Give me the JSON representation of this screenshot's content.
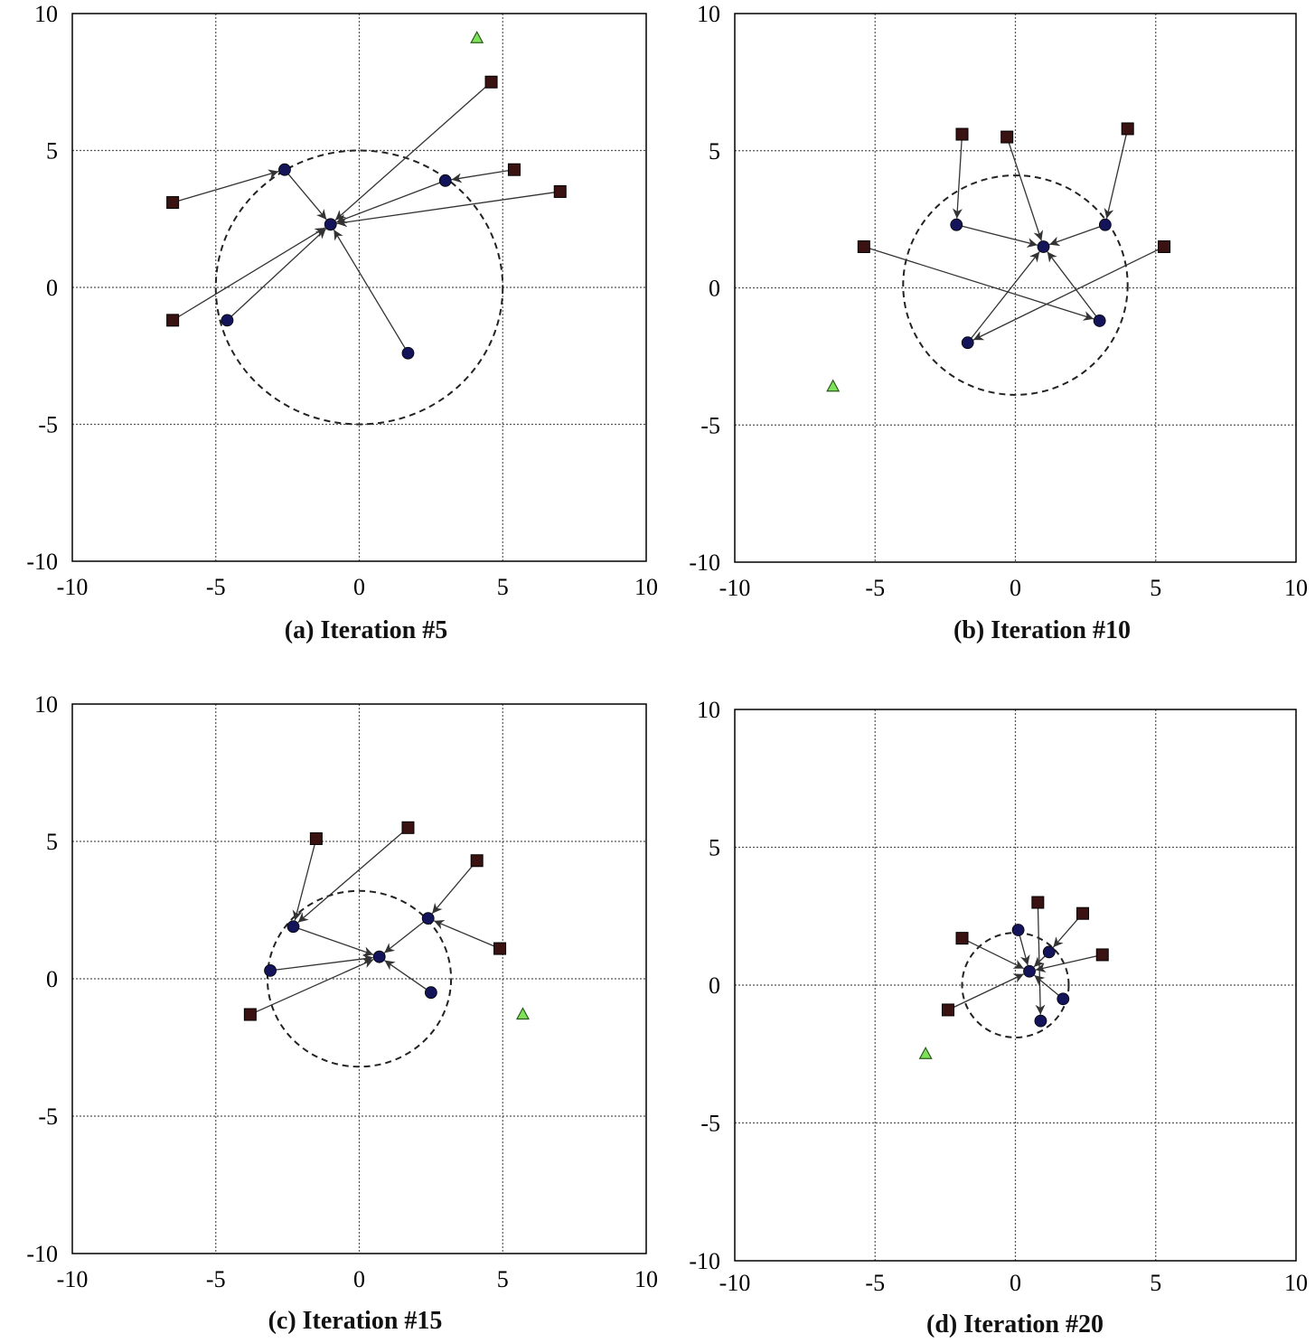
{
  "chart_data": [
    {
      "type": "scatter",
      "caption": "(a) Iteration #5",
      "xlim": [
        -10,
        10
      ],
      "ylim": [
        -10,
        10
      ],
      "xticks": [
        "-10",
        "-5",
        "0",
        "5",
        "10"
      ],
      "yticks": [
        "10",
        "5",
        "0",
        "-5",
        "-10"
      ],
      "grid": true,
      "circle": {
        "cx": 0,
        "cy": 0,
        "r": 5
      },
      "squares": [
        [
          -6.5,
          3.1
        ],
        [
          -6.5,
          -1.2
        ],
        [
          4.6,
          7.5
        ],
        [
          5.4,
          4.3
        ],
        [
          7.0,
          3.5
        ]
      ],
      "dots": [
        [
          -2.6,
          4.3
        ],
        [
          -1.0,
          2.3
        ],
        [
          3.0,
          3.9
        ],
        [
          -4.6,
          -1.2
        ],
        [
          1.7,
          -2.4
        ]
      ],
      "triangles": [
        [
          4.1,
          9.1
        ]
      ],
      "arrows": [
        [
          [
            -6.5,
            3.1
          ],
          [
            -2.6,
            4.3
          ]
        ],
        [
          [
            -2.6,
            4.3
          ],
          [
            -1.0,
            2.3
          ]
        ],
        [
          [
            4.6,
            7.5
          ],
          [
            -1.0,
            2.3
          ]
        ],
        [
          [
            5.4,
            4.3
          ],
          [
            3.0,
            3.9
          ]
        ],
        [
          [
            3.0,
            3.9
          ],
          [
            -1.0,
            2.3
          ]
        ],
        [
          [
            7.0,
            3.5
          ],
          [
            -1.0,
            2.3
          ]
        ],
        [
          [
            -6.5,
            -1.2
          ],
          [
            -1.0,
            2.3
          ]
        ],
        [
          [
            -4.6,
            -1.2
          ],
          [
            -1.0,
            2.3
          ]
        ],
        [
          [
            1.7,
            -2.4
          ],
          [
            -1.0,
            2.3
          ]
        ]
      ]
    },
    {
      "type": "scatter",
      "caption": "(b) Iteration #10",
      "xlim": [
        -10,
        10
      ],
      "ylim": [
        -10,
        10
      ],
      "xticks": [
        "-10",
        "-5",
        "0",
        "5",
        "10"
      ],
      "yticks": [
        "10",
        "5",
        "0",
        "-5",
        "-10"
      ],
      "grid": true,
      "circle": {
        "cx": 0,
        "cy": 0.1,
        "r": 4
      },
      "squares": [
        [
          -1.9,
          5.6
        ],
        [
          -0.3,
          5.5
        ],
        [
          4.0,
          5.8
        ],
        [
          -5.4,
          1.5
        ],
        [
          5.3,
          1.5
        ]
      ],
      "dots": [
        [
          -2.1,
          2.3
        ],
        [
          1.0,
          1.5
        ],
        [
          3.2,
          2.3
        ],
        [
          3.0,
          -1.2
        ],
        [
          -1.7,
          -2.0
        ]
      ],
      "triangles": [
        [
          -6.5,
          -3.6
        ]
      ],
      "arrows": [
        [
          [
            -1.9,
            5.6
          ],
          [
            -2.1,
            2.3
          ]
        ],
        [
          [
            -0.3,
            5.5
          ],
          [
            1.0,
            1.5
          ]
        ],
        [
          [
            4.0,
            5.8
          ],
          [
            3.2,
            2.3
          ]
        ],
        [
          [
            -2.1,
            2.3
          ],
          [
            1.0,
            1.5
          ]
        ],
        [
          [
            3.2,
            2.3
          ],
          [
            1.0,
            1.5
          ]
        ],
        [
          [
            -5.4,
            1.5
          ],
          [
            3.0,
            -1.2
          ]
        ],
        [
          [
            5.3,
            1.5
          ],
          [
            -1.7,
            -2.0
          ]
        ],
        [
          [
            3.0,
            -1.2
          ],
          [
            1.0,
            1.5
          ]
        ],
        [
          [
            -1.7,
            -2.0
          ],
          [
            1.0,
            1.5
          ]
        ]
      ]
    },
    {
      "type": "scatter",
      "caption": "(c) Iteration #15",
      "xlim": [
        -10,
        10
      ],
      "ylim": [
        -10,
        10
      ],
      "xticks": [
        "-10",
        "-5",
        "0",
        "5",
        "10"
      ],
      "yticks": [
        "10",
        "5",
        "0",
        "-5",
        "-10"
      ],
      "grid": true,
      "circle": {
        "cx": 0,
        "cy": 0,
        "r": 3.2
      },
      "squares": [
        [
          -1.5,
          5.1
        ],
        [
          1.7,
          5.5
        ],
        [
          4.1,
          4.3
        ],
        [
          4.9,
          1.1
        ],
        [
          -3.8,
          -1.3
        ]
      ],
      "dots": [
        [
          -2.3,
          1.9
        ],
        [
          0.7,
          0.8
        ],
        [
          2.4,
          2.2
        ],
        [
          -3.1,
          0.3
        ],
        [
          2.5,
          -0.5
        ]
      ],
      "triangles": [
        [
          5.7,
          -1.3
        ]
      ],
      "arrows": [
        [
          [
            -1.5,
            5.1
          ],
          [
            -2.3,
            1.9
          ]
        ],
        [
          [
            1.7,
            5.5
          ],
          [
            -2.3,
            1.9
          ]
        ],
        [
          [
            4.1,
            4.3
          ],
          [
            2.4,
            2.2
          ]
        ],
        [
          [
            4.9,
            1.1
          ],
          [
            2.4,
            2.2
          ]
        ],
        [
          [
            -2.3,
            1.9
          ],
          [
            0.7,
            0.8
          ]
        ],
        [
          [
            2.4,
            2.2
          ],
          [
            0.7,
            0.8
          ]
        ],
        [
          [
            -3.1,
            0.3
          ],
          [
            0.7,
            0.8
          ]
        ],
        [
          [
            -3.8,
            -1.3
          ],
          [
            0.7,
            0.8
          ]
        ],
        [
          [
            2.5,
            -0.5
          ],
          [
            0.7,
            0.8
          ]
        ]
      ]
    },
    {
      "type": "scatter",
      "caption": "(d) Iteration #20",
      "xlim": [
        -10,
        10
      ],
      "ylim": [
        -10,
        10
      ],
      "xticks": [
        "-10",
        "-5",
        "0",
        "5",
        "10"
      ],
      "yticks": [
        "10",
        "5",
        "0",
        "-5",
        "-10"
      ],
      "grid": true,
      "circle": {
        "cx": 0,
        "cy": 0,
        "r": 1.9
      },
      "squares": [
        [
          -1.9,
          1.7
        ],
        [
          0.8,
          3.0
        ],
        [
          2.4,
          2.6
        ],
        [
          3.1,
          1.1
        ],
        [
          -2.4,
          -0.9
        ]
      ],
      "dots": [
        [
          0.1,
          2.0
        ],
        [
          0.5,
          0.5
        ],
        [
          1.2,
          1.2
        ],
        [
          1.7,
          -0.5
        ],
        [
          0.9,
          -1.3
        ]
      ],
      "triangles": [
        [
          -3.2,
          -2.5
        ]
      ],
      "arrows": [
        [
          [
            -1.9,
            1.7
          ],
          [
            0.5,
            0.5
          ]
        ],
        [
          [
            0.8,
            3.0
          ],
          [
            0.9,
            -1.3
          ]
        ],
        [
          [
            2.4,
            2.6
          ],
          [
            1.2,
            1.2
          ]
        ],
        [
          [
            3.1,
            1.1
          ],
          [
            0.5,
            0.5
          ]
        ],
        [
          [
            -2.4,
            -0.9
          ],
          [
            0.5,
            0.5
          ]
        ],
        [
          [
            0.1,
            2.0
          ],
          [
            0.5,
            0.5
          ]
        ],
        [
          [
            1.2,
            1.2
          ],
          [
            0.5,
            0.5
          ]
        ],
        [
          [
            1.7,
            -0.5
          ],
          [
            0.5,
            0.5
          ]
        ]
      ]
    }
  ],
  "colors": {
    "square": "#3a1212",
    "dot": "#14145a",
    "triangle": "#7fe05a",
    "grid": "#555555",
    "frame": "#000000"
  }
}
